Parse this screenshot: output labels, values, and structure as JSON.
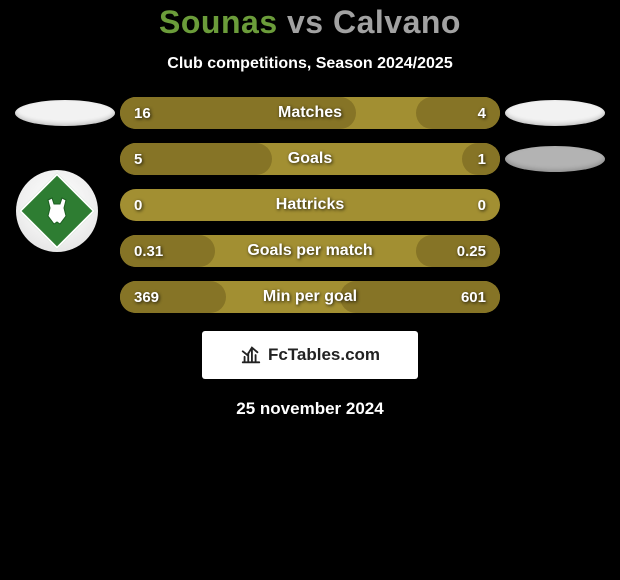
{
  "title": {
    "player1": "Sounas",
    "vs": "vs",
    "player2": "Calvano"
  },
  "title_colors": {
    "player1": "#6b9c3a",
    "vs": "#a2a2a2",
    "player2": "#a2a2a2"
  },
  "subtitle": "Club competitions, Season 2024/2025",
  "badge_colors": {
    "left_ellipse": "#f2f2f2",
    "right_top_ellipse": "#f2f2f2",
    "right_second_ellipse": "#b3b3b3"
  },
  "club_logo": {
    "bg": "#ffffff",
    "diamond": "#2e7d32",
    "icon_stroke": "#ffffff"
  },
  "bar_colors": {
    "base": "#a28f32",
    "left_fill": "#867426",
    "right_fill": "#867426"
  },
  "stats": [
    {
      "label": "Matches",
      "left_val": "16",
      "right_val": "4",
      "left_pct": 62,
      "right_pct": 22
    },
    {
      "label": "Goals",
      "left_val": "5",
      "right_val": "1",
      "left_pct": 40,
      "right_pct": 10
    },
    {
      "label": "Hattricks",
      "left_val": "0",
      "right_val": "0",
      "left_pct": 0,
      "right_pct": 0
    },
    {
      "label": "Goals per match",
      "left_val": "0.31",
      "right_val": "0.25",
      "left_pct": 25,
      "right_pct": 22
    },
    {
      "label": "Min per goal",
      "left_val": "369",
      "right_val": "601",
      "left_pct": 28,
      "right_pct": 42
    }
  ],
  "watermark": "FcTables.com",
  "date": "25 november 2024"
}
